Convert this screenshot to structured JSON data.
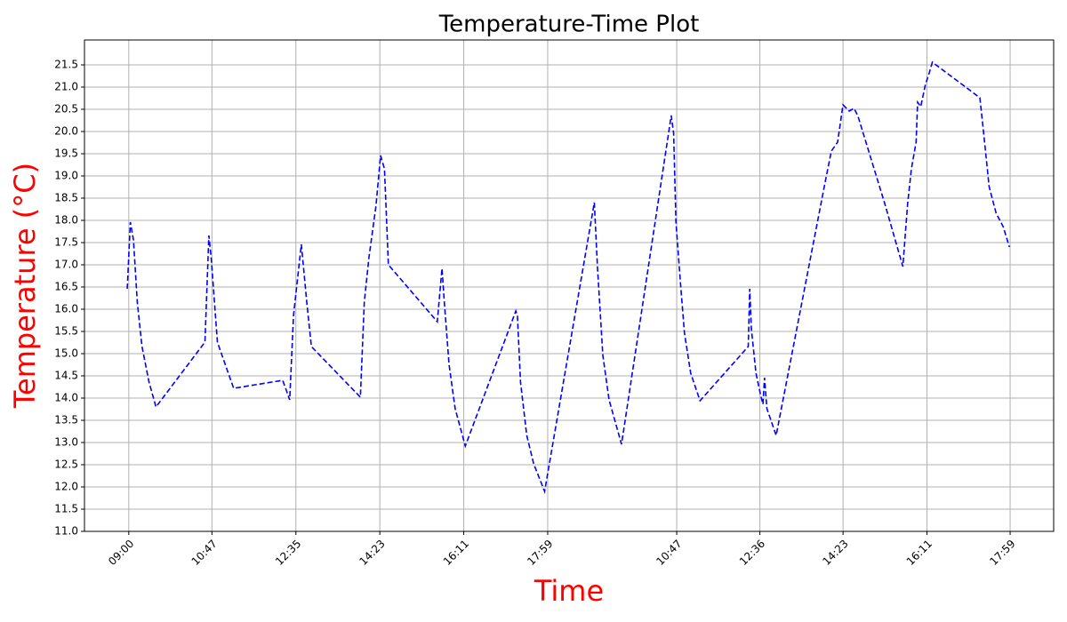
{
  "chart_data": {
    "type": "line",
    "title": "Temperature-Time Plot",
    "x_label": "Time",
    "y_label": "Temperature (°C)",
    "x": [
      -2,
      2,
      6,
      11,
      17,
      26,
      35,
      98,
      103,
      106,
      114,
      126,
      135,
      198,
      203,
      207,
      212,
      222,
      229,
      235,
      298,
      303,
      309,
      318,
      324,
      329,
      334,
      397,
      403,
      406,
      412,
      420,
      433,
      498,
      500,
      504,
      512,
      521,
      535,
      599,
      603,
      610,
      618,
      634,
      698,
      701,
      704,
      710,
      715,
      723,
      735,
      797,
      799,
      801,
      807,
      813,
      816,
      818,
      821,
      825,
      833,
      896,
      904,
      912,
      919,
      927,
      933,
      938,
      973,
      996,
      1002,
      1007,
      1013,
      1015,
      1019,
      1025,
      1030,
      1034,
      1095,
      1100,
      1107,
      1116,
      1125,
      1133
    ],
    "values": [
      16.46,
      17.96,
      17.56,
      16.16,
      15.16,
      14.36,
      13.8,
      15.26,
      17.66,
      17.16,
      15.26,
      14.66,
      14.22,
      14.4,
      14.16,
      13.96,
      15.86,
      17.46,
      16.16,
      15.16,
      14.02,
      16.16,
      17.16,
      18.32,
      19.46,
      19.16,
      17.0,
      15.72,
      16.92,
      16.16,
      14.76,
      13.76,
      12.92,
      15.96,
      15.86,
      14.36,
      13.16,
      12.52,
      11.9,
      18.4,
      16.96,
      14.96,
      13.96,
      12.96,
      20.36,
      19.96,
      17.96,
      16.56,
      15.46,
      14.56,
      13.94,
      15.16,
      16.46,
      15.56,
      14.56,
      14.06,
      13.86,
      14.46,
      13.76,
      13.56,
      13.16,
      18.86,
      19.56,
      19.76,
      20.6,
      20.46,
      20.52,
      20.36,
      18.36,
      16.96,
      18.36,
      19.16,
      19.76,
      20.66,
      20.56,
      21.06,
      21.32,
      21.56,
      20.76,
      19.96,
      18.76,
      18.16,
      17.86,
      17.4
    ],
    "color": "#0000ff",
    "line_style": "dashed",
    "grid": true,
    "xlim": [
      -57,
      1190
    ],
    "xticks": [
      {
        "value": 0,
        "label": "09:00"
      },
      {
        "value": 107,
        "label": "10:47"
      },
      {
        "value": 215,
        "label": "12:35"
      },
      {
        "value": 323,
        "label": "14:23"
      },
      {
        "value": 431,
        "label": "16:11"
      },
      {
        "value": 539,
        "label": "17:59"
      },
      {
        "value": 705,
        "label": "10:47"
      },
      {
        "value": 812,
        "label": "12:36"
      },
      {
        "value": 919,
        "label": "14:23"
      },
      {
        "value": 1027,
        "label": "16:11"
      },
      {
        "value": 1134,
        "label": "17:59"
      }
    ],
    "ylim": [
      11.0,
      22.06
    ],
    "yticks": [
      {
        "value": 11,
        "label": "11.0"
      },
      11.5,
      {
        "value": 12,
        "label": "12.0"
      },
      12.5,
      {
        "value": 13,
        "label": "13.0"
      },
      13.5,
      {
        "value": 14,
        "label": "14.0"
      },
      14.5,
      {
        "value": 15,
        "label": "15.0"
      },
      15.5,
      {
        "value": 16,
        "label": "16.0"
      },
      16.5,
      {
        "value": 17,
        "label": "17.0"
      },
      17.5,
      {
        "value": 18,
        "label": "18.0"
      },
      18.5,
      {
        "value": 19,
        "label": "19.0"
      },
      19.5,
      {
        "value": 20,
        "label": "20.0"
      },
      20.5,
      {
        "value": 21,
        "label": "21.0"
      },
      21.5
    ]
  }
}
